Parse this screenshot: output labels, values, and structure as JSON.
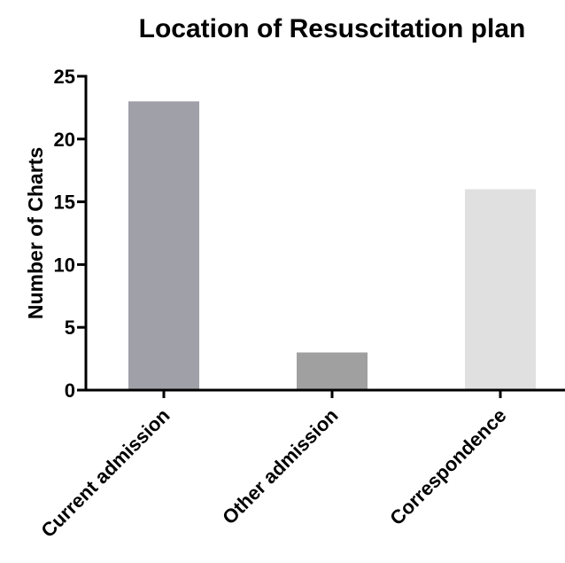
{
  "chart_data": {
    "type": "bar",
    "title": "Location of Resuscitation plan",
    "y_label": "Number of Charts",
    "categories": [
      "Current admission",
      "Other admission",
      "Correspondence"
    ],
    "values": [
      23,
      3,
      16
    ],
    "colors": [
      "#a0a0a8",
      "#a0a0a0",
      "#e0e0e0"
    ],
    "ylim": [
      0,
      25
    ],
    "yticks": [
      0,
      5,
      10,
      15,
      20,
      25
    ],
    "grid": false
  }
}
